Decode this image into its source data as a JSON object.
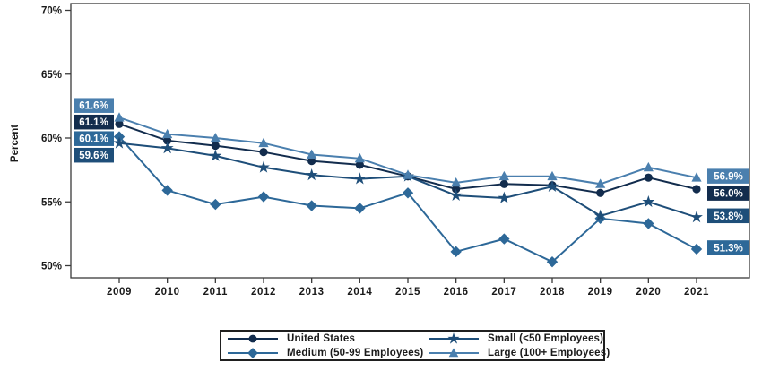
{
  "figure": {
    "background": "#ffffff",
    "axis_color": "#3a3a3a",
    "tick_text_color": "#1a1a1a",
    "data_label_text_color": "#ffffff",
    "legend_border_color": "#1f1f1f"
  },
  "chart_data": {
    "type": "line",
    "title": "",
    "ylabel": "Percent",
    "xlabel": "",
    "ylim": [
      50,
      70
    ],
    "grid": false,
    "legend_position": "bottom",
    "x": [
      "2009",
      "2010",
      "2011",
      "2012",
      "2013",
      "2014",
      "2015",
      "2016",
      "2017",
      "2018",
      "2019",
      "2020",
      "2021"
    ],
    "ytick_labels": [
      "70%",
      "65%",
      "60%",
      "55%",
      "50%"
    ],
    "yticks": [
      70,
      65,
      60,
      55,
      50
    ],
    "series": [
      {
        "name": "United States",
        "marker": "circle",
        "color": "#122c4d",
        "values": [
          61.1,
          59.8,
          59.4,
          58.9,
          58.2,
          57.9,
          57.0,
          56.0,
          56.4,
          56.3,
          55.7,
          56.9,
          56.0
        ],
        "first_label": "61.1%",
        "last_label": "56.0%"
      },
      {
        "name": "Medium (50-99 Employees)",
        "marker": "diamond",
        "color": "#2d6898",
        "values": [
          60.1,
          55.9,
          54.8,
          55.4,
          54.7,
          54.5,
          55.7,
          51.1,
          52.1,
          50.3,
          53.7,
          53.3,
          51.3
        ],
        "first_label": "60.1%",
        "last_label": "51.3%"
      },
      {
        "name": "Small (<50 Employees)",
        "marker": "star",
        "color": "#1e4e79",
        "values": [
          59.6,
          59.2,
          58.6,
          57.7,
          57.1,
          56.8,
          57.0,
          55.5,
          55.3,
          56.2,
          53.9,
          55.0,
          53.8
        ],
        "first_label": "59.6%",
        "last_label": "53.8%"
      },
      {
        "name": "Large (100+ Employees)",
        "marker": "triangle",
        "color": "#4a7fae",
        "values": [
          61.6,
          60.3,
          60.0,
          59.6,
          58.7,
          58.4,
          57.1,
          56.5,
          57.0,
          57.0,
          56.4,
          57.7,
          56.9
        ],
        "first_label": "61.6%",
        "last_label": "56.9%"
      }
    ],
    "legend_order": [
      0,
      2,
      1,
      3
    ]
  }
}
